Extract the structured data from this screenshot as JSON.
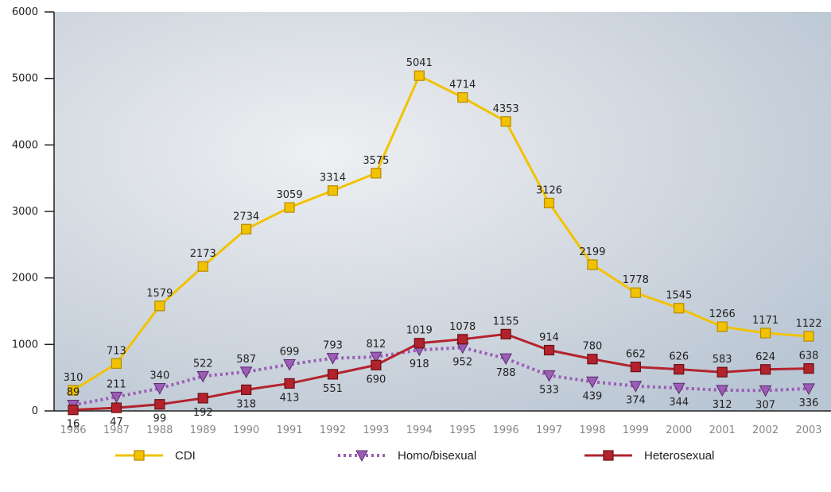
{
  "chart_data": {
    "type": "line",
    "categories": [
      "1986",
      "1987",
      "1988",
      "1989",
      "1990",
      "1991",
      "1992",
      "1993",
      "1994",
      "1995",
      "1996",
      "1997",
      "1998",
      "1999",
      "2000",
      "2001",
      "2002",
      "2003"
    ],
    "series": [
      {
        "name": "CDI",
        "color": "#f2c200",
        "marker": "square",
        "values": [
          310,
          713,
          1579,
          2173,
          2734,
          3059,
          3314,
          3575,
          5041,
          4714,
          4353,
          3126,
          2199,
          1778,
          1545,
          1266,
          1171,
          1122
        ]
      },
      {
        "name": "Homo/bisexual",
        "color": "#9b5db5",
        "marker": "triangle",
        "dashed": true,
        "values": [
          89,
          211,
          340,
          522,
          587,
          699,
          793,
          812,
          918,
          952,
          788,
          533,
          439,
          374,
          344,
          312,
          307,
          336
        ]
      },
      {
        "name": "Heterosexual",
        "color": "#b3232d",
        "marker": "square",
        "values": [
          16,
          47,
          99,
          192,
          318,
          413,
          551,
          690,
          1019,
          1078,
          1155,
          914,
          780,
          662,
          626,
          583,
          624,
          638
        ]
      }
    ],
    "ylim": [
      0,
      6000
    ],
    "yticks": [
      0,
      1000,
      2000,
      3000,
      4000,
      5000,
      6000
    ]
  }
}
